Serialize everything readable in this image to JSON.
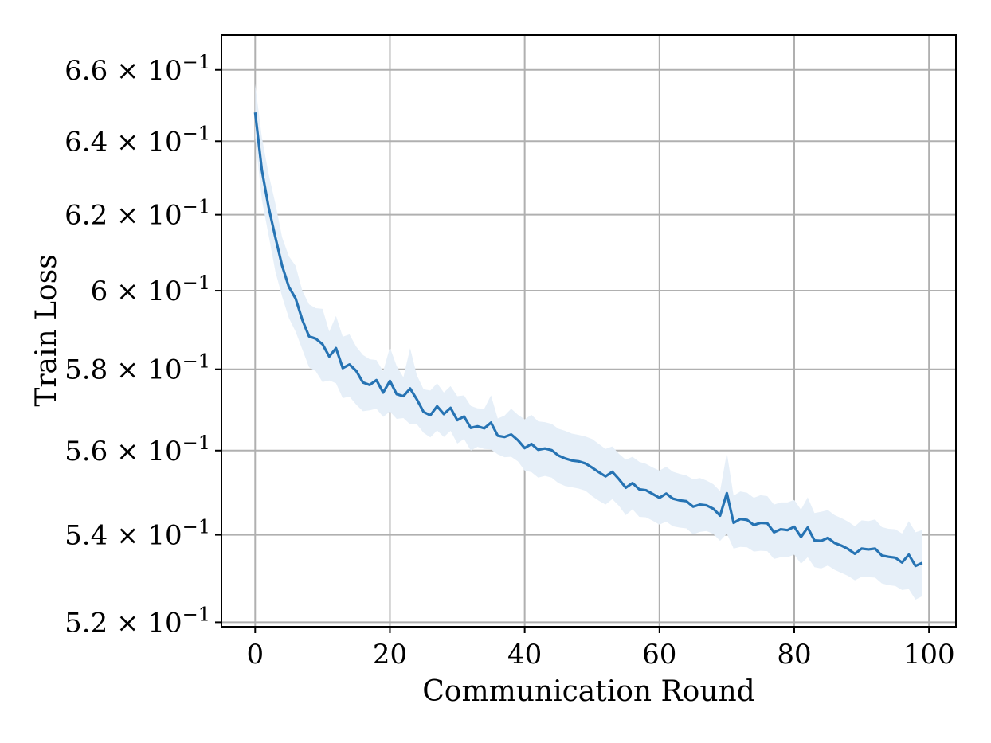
{
  "chart_data": {
    "type": "line",
    "title": "",
    "xlabel": "Communication Round",
    "ylabel": "Train Loss",
    "xlim": [
      -5,
      104
    ],
    "ylim": [
      0.519,
      0.67
    ],
    "yscale": "log",
    "grid": true,
    "x_ticks": [
      0,
      20,
      40,
      60,
      80,
      100
    ],
    "x_tick_labels": [
      "0",
      "20",
      "40",
      "60",
      "80",
      "100"
    ],
    "y_ticks": [
      0.52,
      0.54,
      0.56,
      0.58,
      0.6,
      0.62,
      0.64,
      0.66
    ],
    "y_tick_labels": [
      {
        "mantissa": "5.2",
        "base": "10",
        "exponent": "−1"
      },
      {
        "mantissa": "5.4",
        "base": "10",
        "exponent": "−1"
      },
      {
        "mantissa": "5.6",
        "base": "10",
        "exponent": "−1"
      },
      {
        "mantissa": "5.8",
        "base": "10",
        "exponent": "−1"
      },
      {
        "mantissa": "6",
        "base": "10",
        "exponent": "−1"
      },
      {
        "mantissa": "6.2",
        "base": "10",
        "exponent": "−1"
      },
      {
        "mantissa": "6.4",
        "base": "10",
        "exponent": "−1"
      },
      {
        "mantissa": "6.6",
        "base": "10",
        "exponent": "−1"
      }
    ],
    "times_symbol": "×",
    "line_color": "#2673b3",
    "band_color": "#e6eff8",
    "series": [
      {
        "x": [
          0,
          1,
          2,
          3,
          4,
          5,
          6,
          7,
          8,
          9,
          10,
          11,
          12,
          13,
          14,
          15,
          16,
          17,
          18,
          19,
          20,
          21,
          22,
          23,
          24,
          25,
          26,
          27,
          28,
          29,
          30,
          31,
          32,
          33,
          34,
          35,
          36,
          37,
          38,
          39,
          40,
          41,
          42,
          43,
          44,
          45,
          46,
          47,
          48,
          49,
          50,
          51,
          52,
          53,
          54,
          55,
          56,
          57,
          58,
          59,
          60,
          61,
          62,
          63,
          64,
          65,
          66,
          67,
          68,
          69,
          70,
          71,
          72,
          73,
          74,
          75,
          76,
          77,
          78,
          79,
          80,
          81,
          82,
          83,
          84,
          85,
          86,
          87,
          88,
          89,
          90,
          91,
          92,
          93,
          94,
          95,
          96,
          97,
          98,
          99
        ],
        "y": [
          0.648,
          0.632,
          0.622,
          0.614,
          0.6065,
          0.601,
          0.598,
          0.5925,
          0.5883,
          0.5877,
          0.5863,
          0.5832,
          0.5853,
          0.5803,
          0.5812,
          0.5796,
          0.5767,
          0.5761,
          0.5773,
          0.5742,
          0.5771,
          0.5738,
          0.5733,
          0.5752,
          0.5725,
          0.5694,
          0.5686,
          0.5708,
          0.5689,
          0.5704,
          0.5674,
          0.5683,
          0.5655,
          0.5659,
          0.5654,
          0.5668,
          0.5636,
          0.5633,
          0.5639,
          0.5625,
          0.5606,
          0.5616,
          0.5602,
          0.5605,
          0.5601,
          0.5588,
          0.5581,
          0.5576,
          0.5574,
          0.5569,
          0.5559,
          0.5548,
          0.5538,
          0.5549,
          0.5531,
          0.5511,
          0.5522,
          0.5507,
          0.5505,
          0.5496,
          0.5487,
          0.5497,
          0.5485,
          0.5481,
          0.5479,
          0.5466,
          0.5471,
          0.5469,
          0.5461,
          0.5445,
          0.5498,
          0.5428,
          0.5437,
          0.5435,
          0.5423,
          0.5428,
          0.5427,
          0.5406,
          0.5413,
          0.5411,
          0.5419,
          0.5395,
          0.5417,
          0.5387,
          0.5386,
          0.5393,
          0.5381,
          0.5375,
          0.5367,
          0.5356,
          0.5368,
          0.5366,
          0.5368,
          0.5352,
          0.5349,
          0.5347,
          0.5336,
          0.5354,
          0.5328,
          0.5335
        ]
      }
    ],
    "band_upper": [
      0.656,
      0.641,
      0.631,
      0.623,
      0.614,
      0.609,
      0.6065,
      0.6,
      0.5965,
      0.5955,
      0.5953,
      0.5895,
      0.5935,
      0.5882,
      0.5888,
      0.5857,
      0.5836,
      0.5825,
      0.5823,
      0.5795,
      0.5855,
      0.5808,
      0.578,
      0.5853,
      0.5785,
      0.575,
      0.5747,
      0.5765,
      0.5742,
      0.5758,
      0.5733,
      0.5735,
      0.5709,
      0.5703,
      0.5702,
      0.5735,
      0.5678,
      0.5685,
      0.5702,
      0.5687,
      0.5676,
      0.5687,
      0.5671,
      0.5669,
      0.5665,
      0.5653,
      0.5648,
      0.5641,
      0.5638,
      0.5634,
      0.5628,
      0.5616,
      0.5604,
      0.561,
      0.5592,
      0.5578,
      0.5585,
      0.5573,
      0.5568,
      0.5559,
      0.5552,
      0.5561,
      0.5549,
      0.5544,
      0.554,
      0.5531,
      0.5534,
      0.5528,
      0.5519,
      0.5503,
      0.5595,
      0.5492,
      0.5502,
      0.5499,
      0.5487,
      0.5493,
      0.5491,
      0.5471,
      0.5476,
      0.5476,
      0.5482,
      0.5459,
      0.5488,
      0.5451,
      0.5454,
      0.5458,
      0.5446,
      0.5439,
      0.5431,
      0.542,
      0.5434,
      0.5432,
      0.5436,
      0.5418,
      0.5414,
      0.5413,
      0.5403,
      0.5432,
      0.5406,
      0.5411
    ],
    "band_lower": [
      0.641,
      0.624,
      0.6145,
      0.605,
      0.5985,
      0.593,
      0.5895,
      0.585,
      0.5805,
      0.5795,
      0.5768,
      0.5772,
      0.5765,
      0.5728,
      0.5732,
      0.5712,
      0.5696,
      0.5698,
      0.5702,
      0.5682,
      0.5695,
      0.5677,
      0.5679,
      0.5664,
      0.5664,
      0.5643,
      0.5632,
      0.5649,
      0.5633,
      0.5648,
      0.5617,
      0.5628,
      0.56,
      0.5609,
      0.5604,
      0.5603,
      0.5591,
      0.5584,
      0.5585,
      0.5574,
      0.5552,
      0.5548,
      0.5535,
      0.5539,
      0.5535,
      0.5522,
      0.5515,
      0.5512,
      0.5509,
      0.5504,
      0.5491,
      0.548,
      0.5471,
      0.5484,
      0.5468,
      0.5446,
      0.546,
      0.5442,
      0.5441,
      0.5433,
      0.5424,
      0.5431,
      0.542,
      0.5417,
      0.5415,
      0.5401,
      0.5407,
      0.5409,
      0.5402,
      0.5386,
      0.5403,
      0.5368,
      0.5372,
      0.5371,
      0.5361,
      0.5363,
      0.5362,
      0.5344,
      0.5348,
      0.5348,
      0.5354,
      0.5333,
      0.5348,
      0.5325,
      0.5322,
      0.5329,
      0.5319,
      0.5312,
      0.5305,
      0.5295,
      0.5303,
      0.5302,
      0.5301,
      0.5288,
      0.5284,
      0.5282,
      0.5273,
      0.5275,
      0.5251,
      0.5259
    ]
  }
}
